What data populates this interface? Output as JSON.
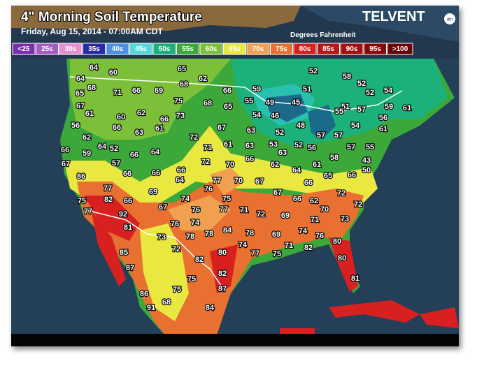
{
  "header": {
    "title": "4\" Morning Soil Temperature",
    "subtitle": "Friday, Aug 15, 2014 - 07:00AM CDT",
    "brand": "TELVENT",
    "brand_badge": "dtn",
    "units": "Degrees Fahrenheit"
  },
  "legend": [
    {
      "label": "<25",
      "color": "#7a2fb0"
    },
    {
      "label": "25s",
      "color": "#a45cc4"
    },
    {
      "label": "30s",
      "color": "#e58fd0"
    },
    {
      "label": "35s",
      "color": "#2a2aa8"
    },
    {
      "label": "40s",
      "color": "#4e8fe0"
    },
    {
      "label": "45s",
      "color": "#54d8d8"
    },
    {
      "label": "50s",
      "color": "#1cb07a"
    },
    {
      "label": "55s",
      "color": "#3ca83a"
    },
    {
      "label": "60s",
      "color": "#7cc03a"
    },
    {
      "label": "65s",
      "color": "#e8e840"
    },
    {
      "label": "70s",
      "color": "#f0a050"
    },
    {
      "label": "75s",
      "color": "#e87030"
    },
    {
      "label": "80s",
      "color": "#d82020"
    },
    {
      "label": "85s",
      "color": "#b81818"
    },
    {
      "label": "90s",
      "color": "#a01010"
    },
    {
      "label": "95s",
      "color": "#880808"
    },
    {
      "label": ">100",
      "color": "#6a0505"
    }
  ],
  "stations": [
    64,
    60,
    64,
    68,
    65,
    71,
    66,
    69,
    65,
    62,
    68,
    66,
    59,
    67,
    61,
    60,
    62,
    66,
    75,
    73,
    68,
    65,
    55,
    49,
    45,
    52,
    51,
    58,
    52,
    52,
    54,
    51,
    55,
    57,
    59,
    61,
    54,
    46,
    48,
    56,
    54,
    61,
    56,
    66,
    63,
    61,
    72,
    67,
    63,
    52,
    57,
    57,
    62,
    64,
    52,
    66,
    59,
    66,
    64,
    71,
    61,
    63,
    53,
    63,
    52,
    56,
    57,
    55,
    67,
    57,
    66,
    66,
    66,
    64,
    72,
    70,
    66,
    62,
    64,
    61,
    58,
    43,
    50,
    86,
    77,
    70,
    67,
    66,
    65,
    66,
    76,
    77,
    69,
    67,
    72,
    75,
    82,
    66,
    74,
    75,
    66,
    62,
    72,
    77,
    92,
    67,
    76,
    77,
    71,
    72,
    69,
    70,
    81,
    76,
    74,
    84,
    78,
    69,
    74,
    71,
    73,
    73,
    78,
    78,
    76,
    80,
    74,
    71,
    82,
    85,
    72,
    80,
    77,
    75,
    82,
    87,
    80,
    82,
    75,
    81,
    75,
    86,
    87,
    68,
    91,
    84
  ]
}
